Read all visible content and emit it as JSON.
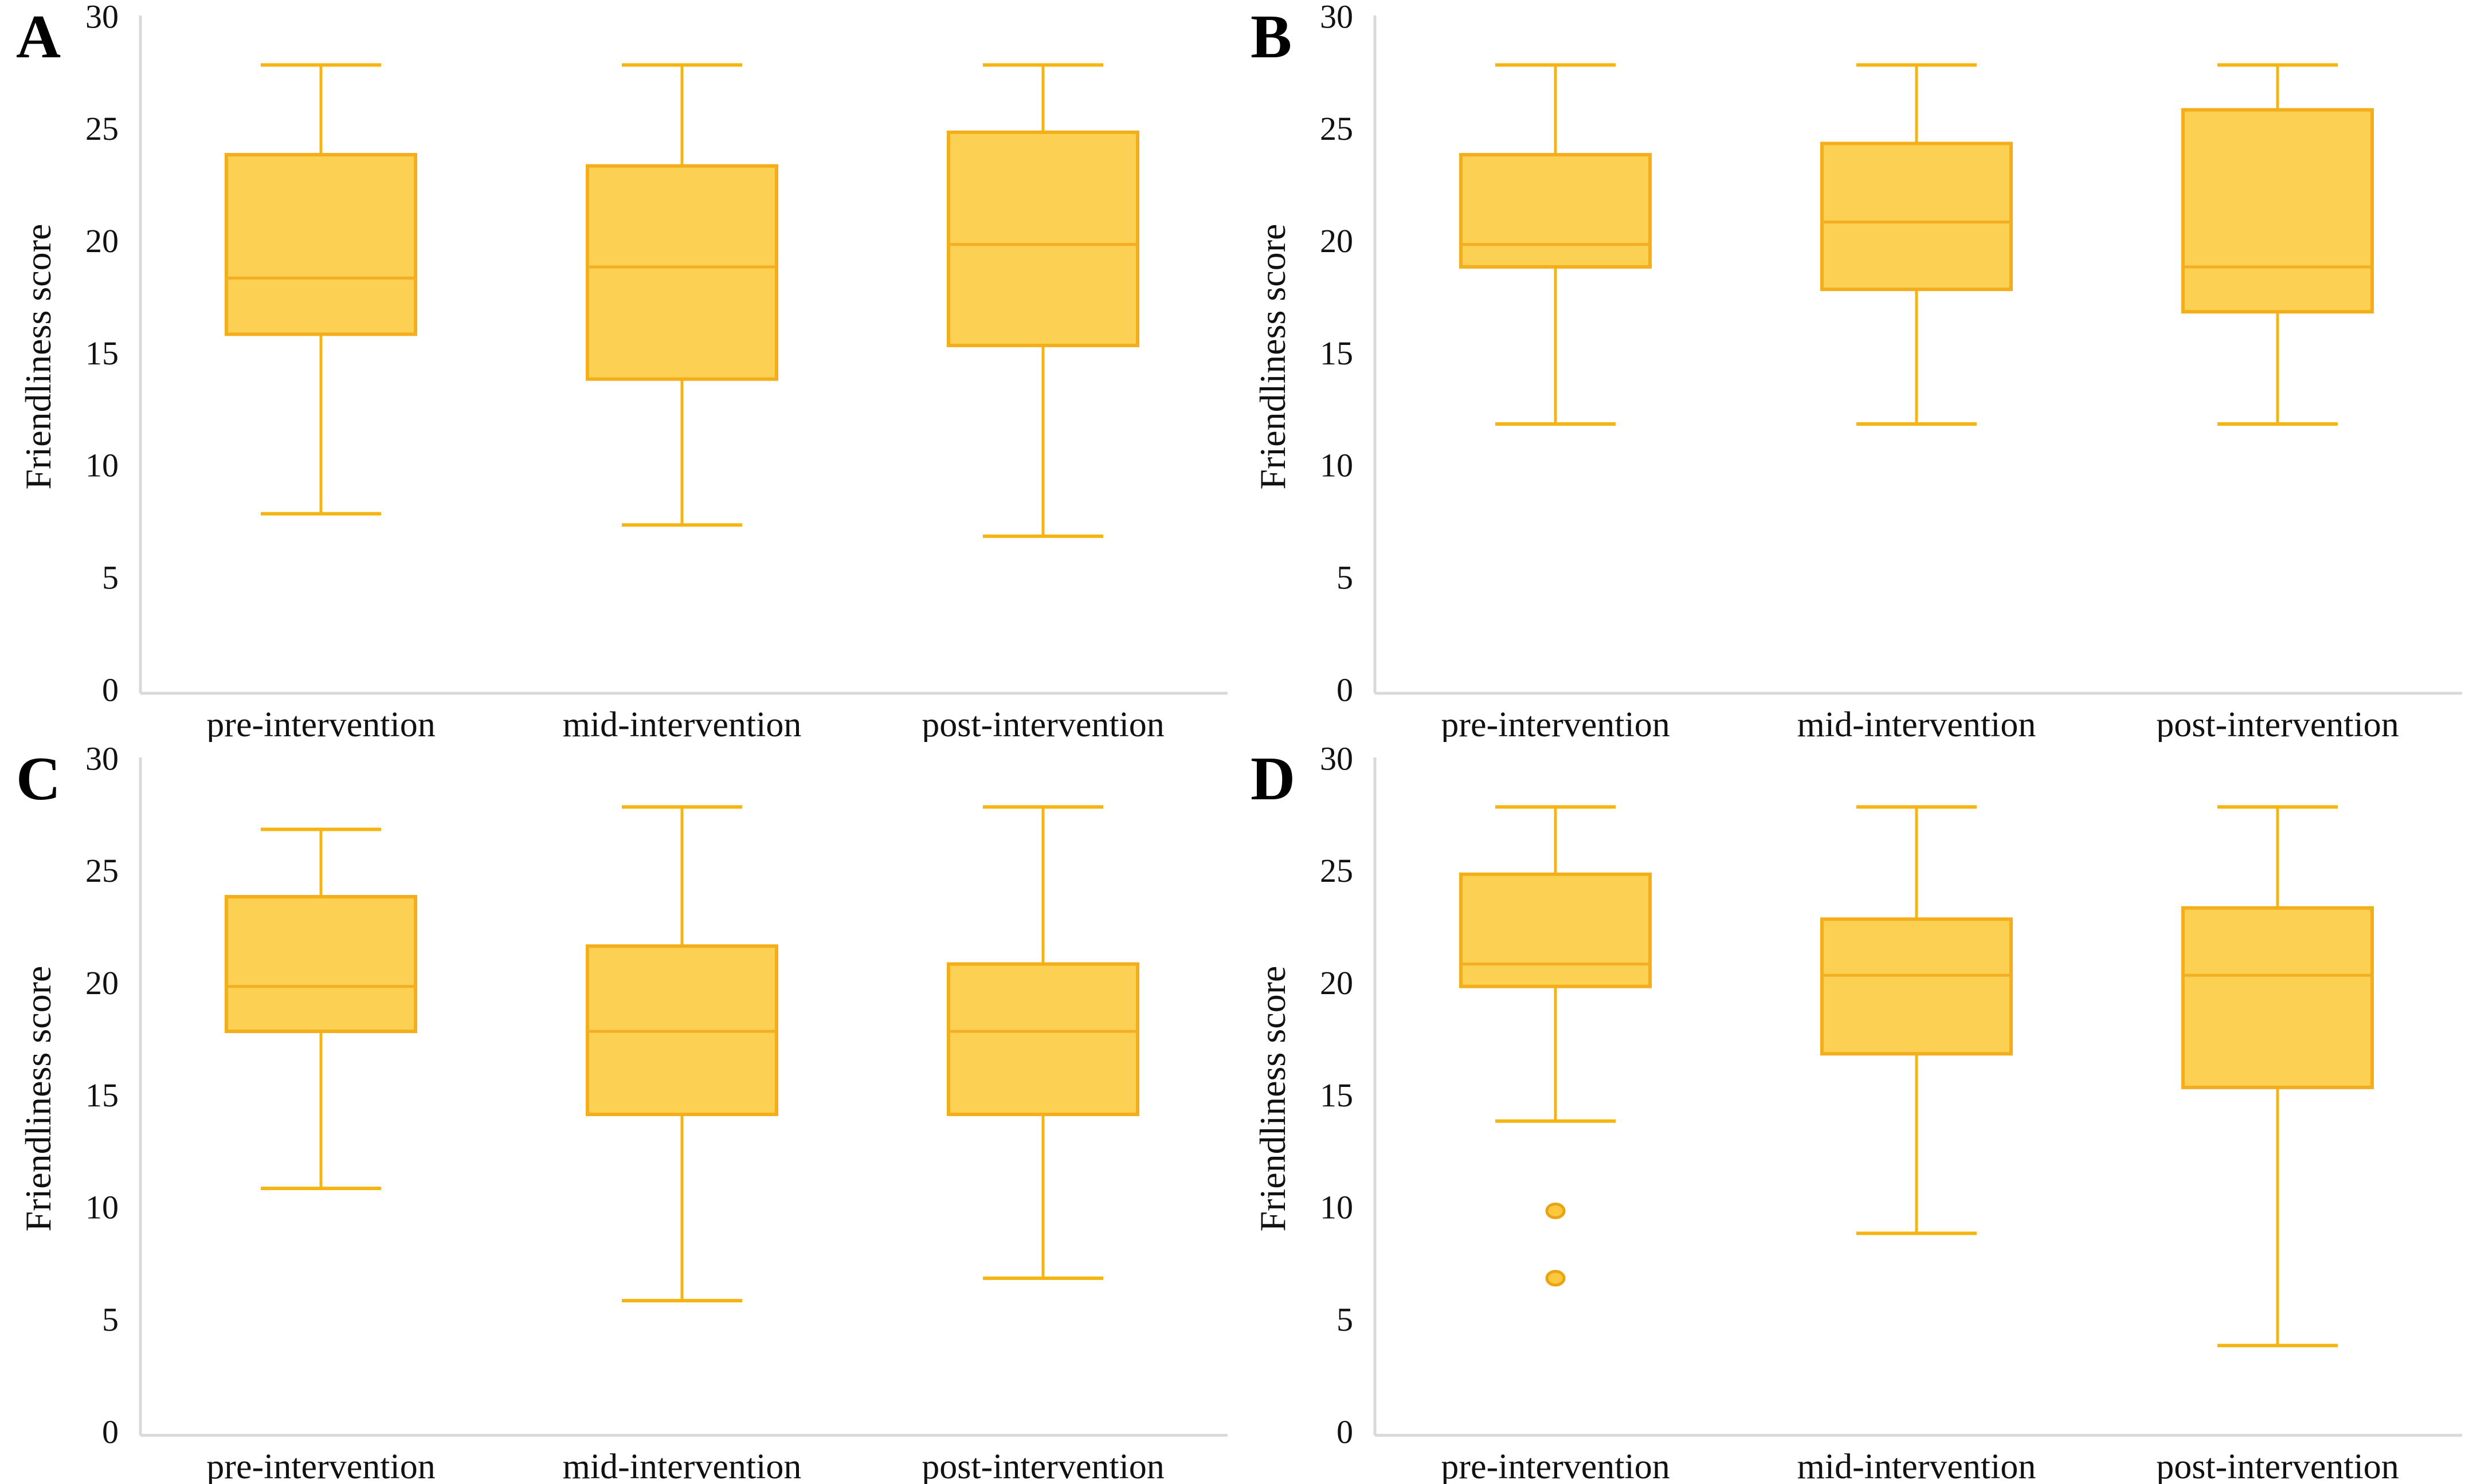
{
  "figure": {
    "ylabel": "Friendliness score",
    "categories": [
      "pre-intervention",
      "mid-intervention",
      "post-intervention"
    ],
    "yticks": [
      0,
      5,
      10,
      15,
      20,
      25,
      30
    ],
    "colors": {
      "box_fill": "#fcd053",
      "box_stroke": "#f3ae19",
      "whisker": "#f6b410",
      "median": "#f4ae23",
      "outlier_fill": "#fcc93e",
      "outlier_stroke": "#e9a313",
      "axis_line": "#d9d9d9",
      "text": "#111111"
    }
  },
  "chart_data": [
    {
      "type": "boxplot",
      "panel_label": "A",
      "ylabel": "Friendliness score",
      "ylim": [
        0,
        30
      ],
      "yticks": [
        0,
        5,
        10,
        15,
        20,
        25,
        30
      ],
      "categories": [
        "pre-intervention",
        "mid-intervention",
        "post-intervention"
      ],
      "series": [
        {
          "name": "pre-intervention",
          "min": 8,
          "q1": 16,
          "median": 18.5,
          "q3": 24,
          "max": 28,
          "outliers": []
        },
        {
          "name": "mid-intervention",
          "min": 7.5,
          "q1": 14,
          "median": 19,
          "q3": 23.5,
          "max": 28,
          "outliers": []
        },
        {
          "name": "post-intervention",
          "min": 7,
          "q1": 15.5,
          "median": 20,
          "q3": 25,
          "max": 28,
          "outliers": []
        }
      ]
    },
    {
      "type": "boxplot",
      "panel_label": "B",
      "ylabel": "Friendliness score",
      "ylim": [
        0,
        30
      ],
      "yticks": [
        0,
        5,
        10,
        15,
        20,
        25,
        30
      ],
      "categories": [
        "pre-intervention",
        "mid-intervention",
        "post-intervention"
      ],
      "series": [
        {
          "name": "pre-intervention",
          "min": 12,
          "q1": 19,
          "median": 20,
          "q3": 24,
          "max": 28,
          "outliers": []
        },
        {
          "name": "mid-intervention",
          "min": 12,
          "q1": 18,
          "median": 21,
          "q3": 24.5,
          "max": 28,
          "outliers": []
        },
        {
          "name": "post-intervention",
          "min": 12,
          "q1": 17,
          "median": 19,
          "q3": 26,
          "max": 28,
          "outliers": []
        }
      ]
    },
    {
      "type": "boxplot",
      "panel_label": "C",
      "ylabel": "Friendliness score",
      "ylim": [
        0,
        30
      ],
      "yticks": [
        0,
        5,
        10,
        15,
        20,
        25,
        30
      ],
      "categories": [
        "pre-intervention",
        "mid-intervention",
        "post-intervention"
      ],
      "series": [
        {
          "name": "pre-intervention",
          "min": 11,
          "q1": 18,
          "median": 20,
          "q3": 24,
          "max": 27,
          "outliers": []
        },
        {
          "name": "mid-intervention",
          "min": 6,
          "q1": 14.3,
          "median": 18,
          "q3": 21.8,
          "max": 28,
          "outliers": []
        },
        {
          "name": "post-intervention",
          "min": 7,
          "q1": 14.3,
          "median": 18,
          "q3": 21,
          "max": 28,
          "outliers": []
        }
      ]
    },
    {
      "type": "boxplot",
      "panel_label": "D",
      "ylabel": "Friendliness score",
      "ylim": [
        0,
        30
      ],
      "yticks": [
        0,
        5,
        10,
        15,
        20,
        25,
        30
      ],
      "categories": [
        "pre-intervention",
        "mid-intervention",
        "post-intervention"
      ],
      "series": [
        {
          "name": "pre-intervention",
          "min": 14,
          "q1": 20,
          "median": 21,
          "q3": 25,
          "max": 28,
          "outliers": [
            10,
            7
          ]
        },
        {
          "name": "mid-intervention",
          "min": 9,
          "q1": 17,
          "median": 20.5,
          "q3": 23,
          "max": 28,
          "outliers": []
        },
        {
          "name": "post-intervention",
          "min": 4,
          "q1": 15.5,
          "median": 20.5,
          "q3": 23.5,
          "max": 28,
          "outliers": []
        }
      ]
    }
  ]
}
